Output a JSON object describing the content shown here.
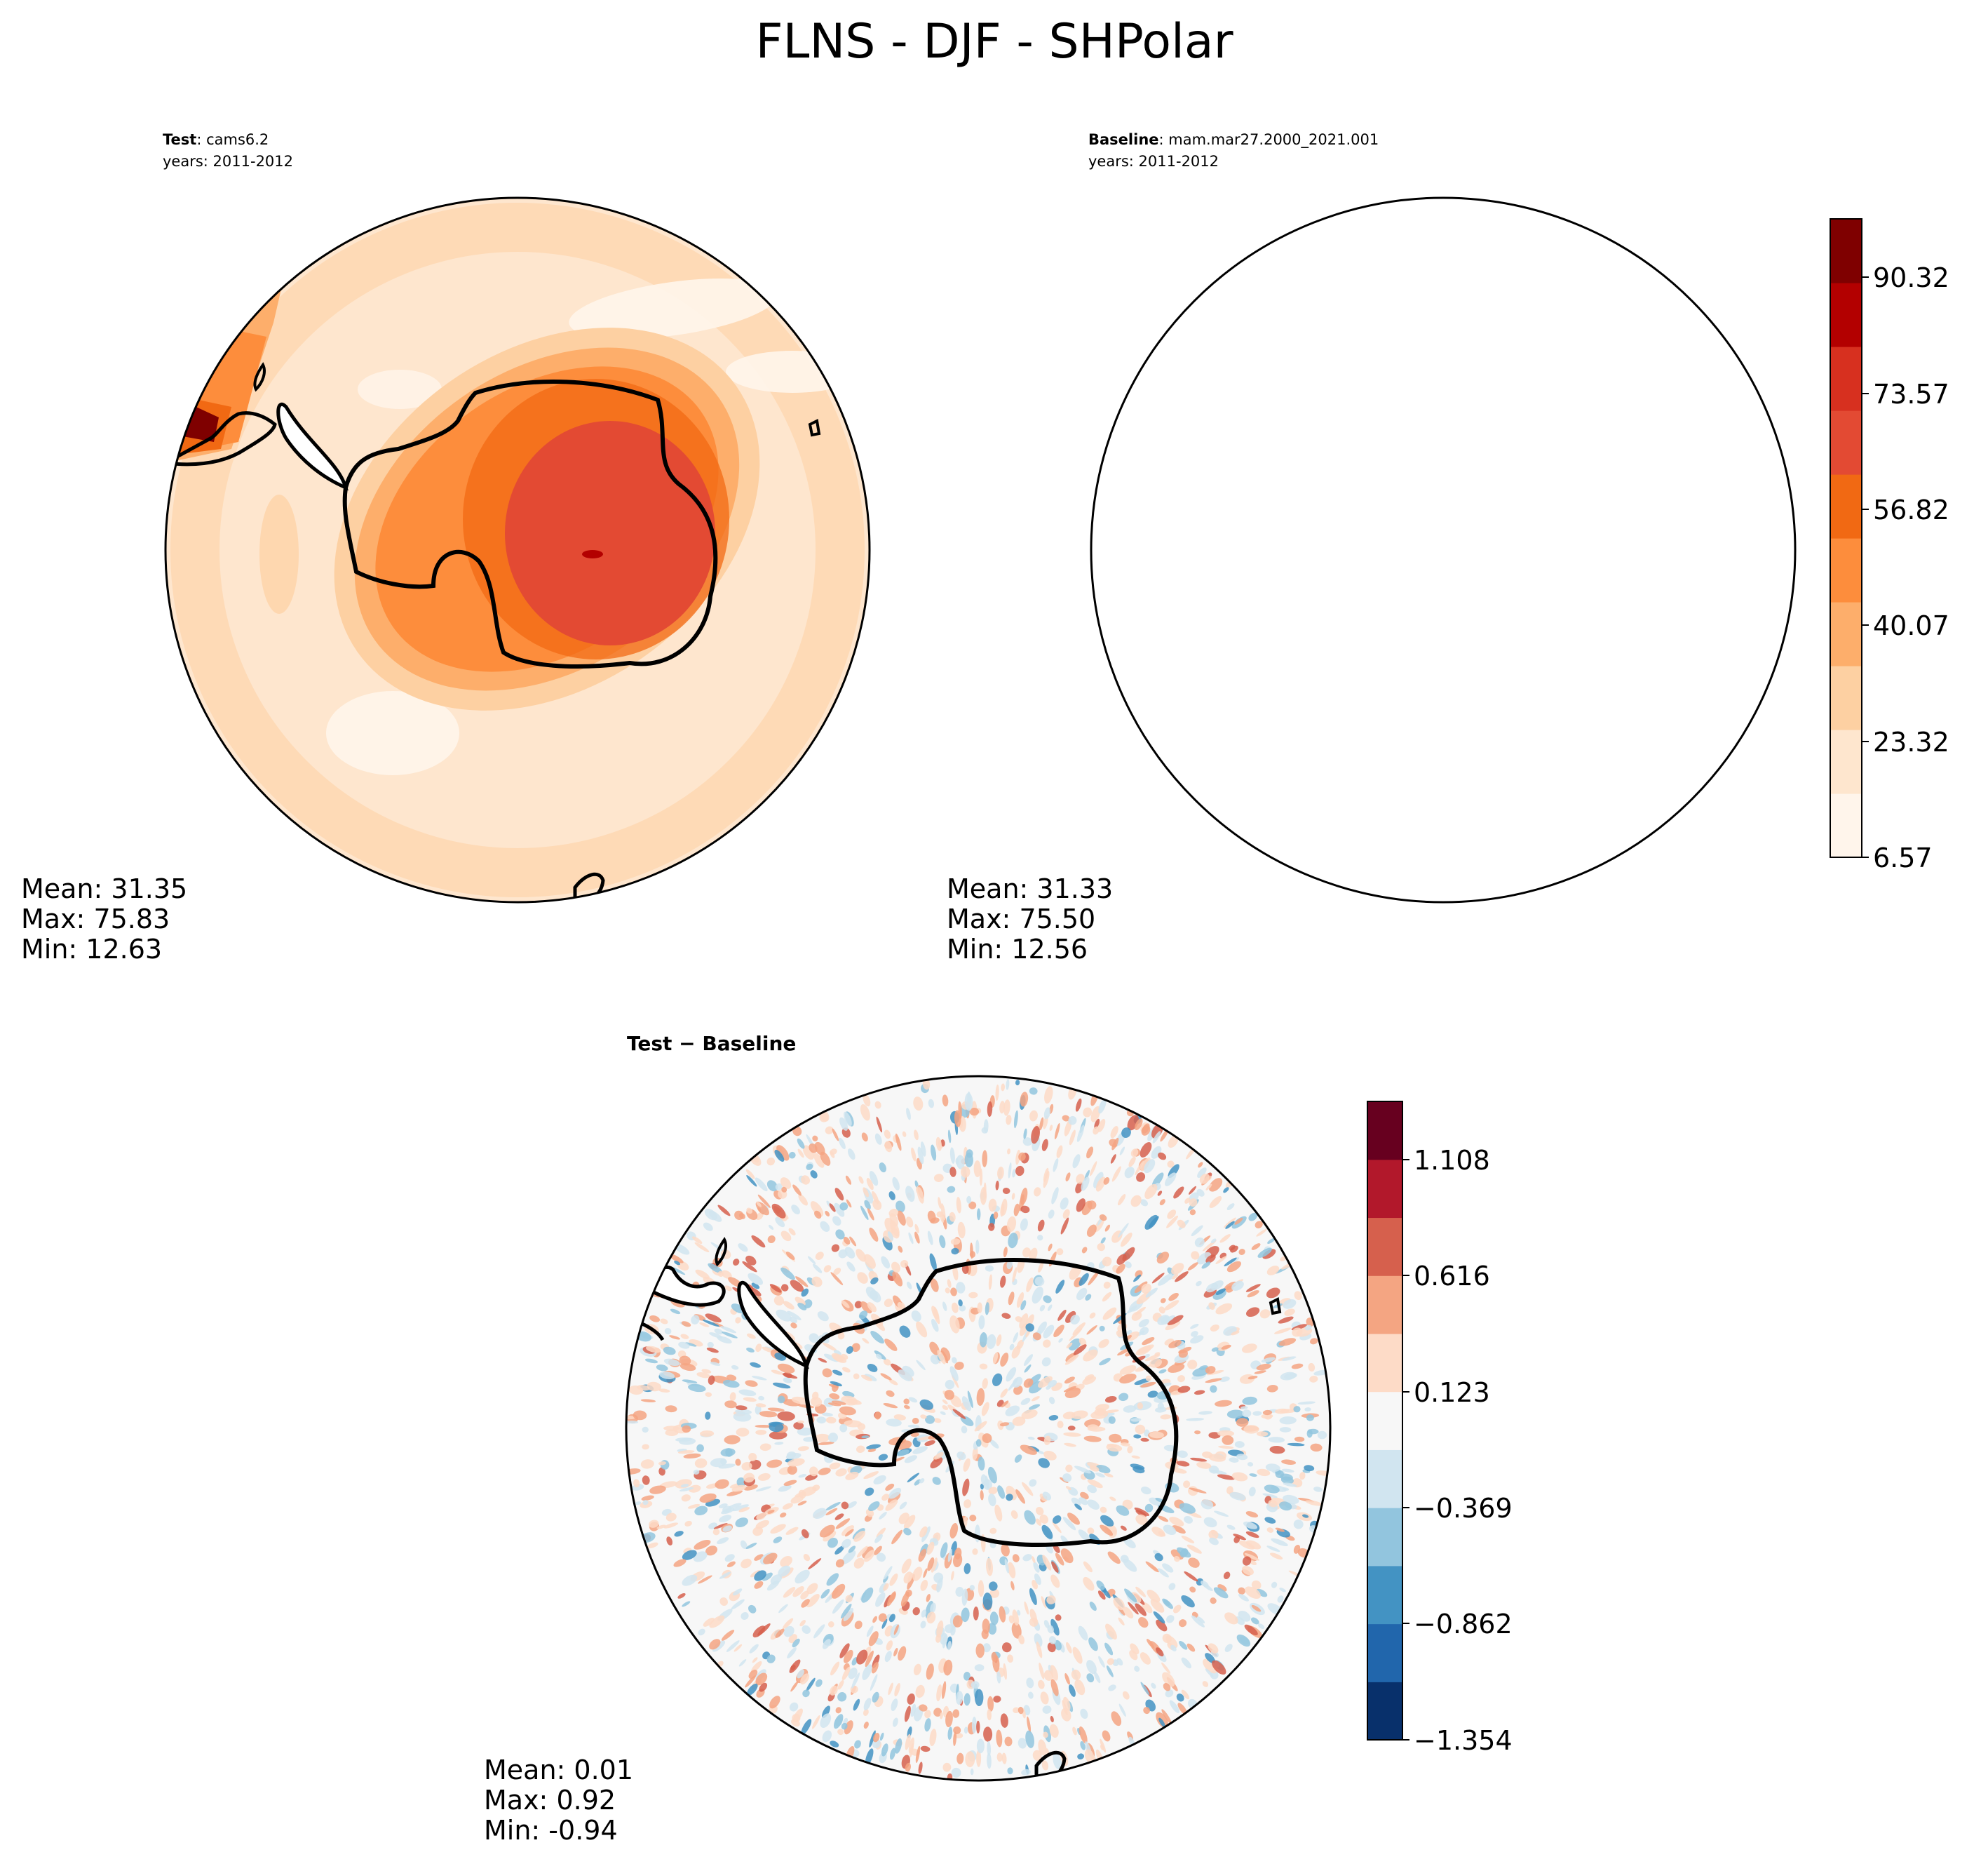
{
  "figure_title": "FLNS - DJF - SHPolar",
  "panels": {
    "test": {
      "label": "Test",
      "case": ": cams6.2",
      "years": "years: 2011-2012",
      "stats": [
        "Mean: 31.35",
        "Max: 75.83",
        "Min: 12.63"
      ]
    },
    "baseline": {
      "label": "Baseline",
      "case": ": mam.mar27.2000_2021.001",
      "years": "years: 2011-2012",
      "stats": [
        "Mean: 31.33",
        "Max: 75.50",
        "Min: 12.56"
      ]
    },
    "diff": {
      "title": "Test − Baseline",
      "stats": [
        "Mean:  0.01",
        "Max:  0.92",
        "Min: -0.94"
      ]
    }
  },
  "colors": {
    "field_levels": [
      "#fff5eb",
      "#fee6ce",
      "#fdd0a2",
      "#fdae6b",
      "#fd8d3c",
      "#f16913",
      "#e34a33",
      "#d7301f",
      "#b30000",
      "#7f0000"
    ],
    "diff_levels": [
      "#08306b",
      "#2166ac",
      "#4393c3",
      "#92c5de",
      "#d1e5f0",
      "#f7f7f7",
      "#fddbc7",
      "#f4a582",
      "#d6604d",
      "#b2182b",
      "#67001f"
    ]
  },
  "chart_data": [
    {
      "type": "heatmap",
      "name": "Test",
      "projection": "south-polar-stereographic",
      "colorbar": {
        "ticks": [
          "6.57",
          "23.32",
          "40.07",
          "56.82",
          "73.57",
          "90.32"
        ],
        "range": [
          6.57,
          98.7
        ]
      },
      "stats": {
        "mean": 31.35,
        "max": 75.83,
        "min": 12.63
      }
    },
    {
      "type": "heatmap",
      "name": "Baseline",
      "projection": "south-polar-stereographic",
      "colorbar": {
        "ticks": [
          "6.57",
          "23.32",
          "40.07",
          "56.82",
          "73.57",
          "90.32"
        ],
        "range": [
          6.57,
          98.7
        ]
      },
      "stats": {
        "mean": 31.33,
        "max": 75.5,
        "min": 12.56
      }
    },
    {
      "type": "heatmap",
      "name": "Test − Baseline",
      "projection": "south-polar-stereographic",
      "colorbar": {
        "ticks": [
          "−1.354",
          "−0.862",
          "−0.369",
          "0.123",
          "0.616",
          "1.108"
        ],
        "range": [
          -1.354,
          1.354
        ]
      },
      "stats": {
        "mean": 0.01,
        "max": 0.92,
        "min": -0.94
      }
    }
  ]
}
